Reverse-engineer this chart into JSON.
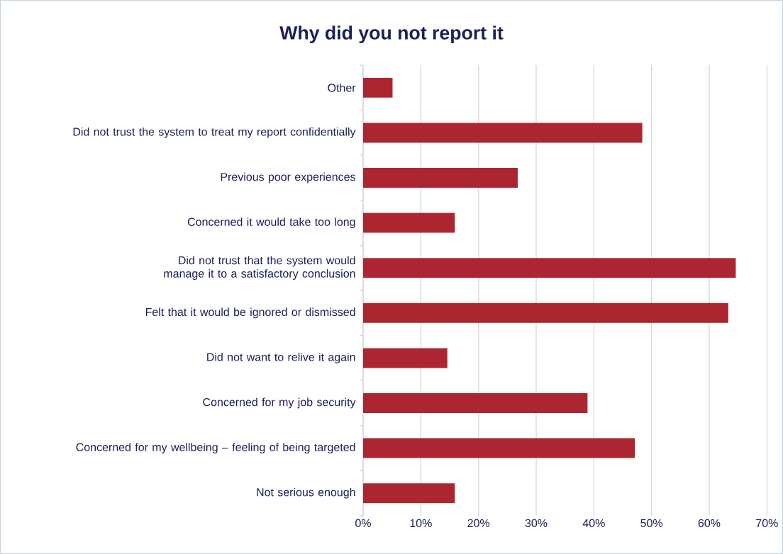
{
  "chart_data": {
    "type": "bar",
    "orientation": "horizontal",
    "title": "Why did you not report it",
    "categories": [
      "Other",
      "Did not trust the system to treat my report confidentially",
      "Previous poor experiences",
      "Concerned it would take too long",
      "Did not trust that the system would manage it to a satisfactory conclusion",
      "Felt that it would be ignored or dismissed",
      "Did not want to relive it again",
      "Concerned for my job security",
      "Concerned for my wellbeing – feeling of being targeted",
      "Not serious enough"
    ],
    "values": [
      5.1,
      48.4,
      26.8,
      15.9,
      64.6,
      63.3,
      14.6,
      38.9,
      47.1,
      15.9
    ],
    "color": "#ab2630",
    "xlim": [
      0,
      70
    ],
    "xticks": [
      {
        "value": 0,
        "label": "0%"
      },
      {
        "value": 10,
        "label": "10%"
      },
      {
        "value": 20,
        "label": "20%"
      },
      {
        "value": 30,
        "label": "30%"
      },
      {
        "value": 40,
        "label": "40%"
      },
      {
        "value": 50,
        "label": "50%"
      },
      {
        "value": 60,
        "label": "60%"
      },
      {
        "value": 70,
        "label": "70%"
      }
    ],
    "grid": "x"
  }
}
